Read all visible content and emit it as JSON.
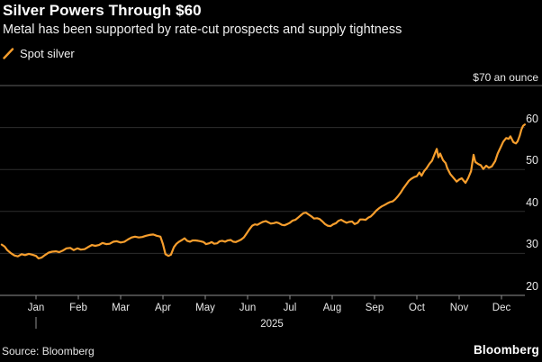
{
  "header": {
    "title": "Silver Powers Through $60",
    "subtitle": "Metal has been supported by rate-cut prospects and supply tightness"
  },
  "legend": {
    "series_label": "Spot silver",
    "swatch_color": "#F79E2D"
  },
  "y_axis": {
    "unit_label": "$70 an ounce",
    "tick_labels": [
      "60",
      "50",
      "40",
      "30",
      "20"
    ],
    "grid_values": [
      60,
      50,
      40,
      30
    ],
    "min": 20,
    "max": 70
  },
  "x_axis": {
    "months": [
      "Jan",
      "Feb",
      "Mar",
      "Apr",
      "May",
      "Jun",
      "Jul",
      "Aug",
      "Sep",
      "Oct",
      "Nov",
      "Dec"
    ],
    "year_label": "2025"
  },
  "footer": {
    "source": "Source: Bloomberg",
    "brand": "Bloomberg"
  },
  "colors": {
    "background": "#000000",
    "line": "#F79E2D",
    "grid": "#2d2d2d",
    "axis": "#8f8f8f",
    "top_rule": "#5f5f5f",
    "text": "#ffffff",
    "muted_text": "#e8e8e8"
  },
  "chart_data": {
    "type": "line",
    "title": "Silver Powers Through $60",
    "subtitle": "Metal has been supported by rate-cut prospects and supply tightness",
    "y_unit": "USD per ounce",
    "x_unit": "month of 2025 (1.0 = Jan 1, 12.0 = Dec 1; values below 1 are Dec 2024)",
    "ylim": [
      20,
      70
    ],
    "xlim": [
      0.19,
      12.55
    ],
    "grid": "horizontal-only",
    "legend_position": "top-left",
    "series": [
      {
        "name": "Spot silver",
        "points": [
          [
            0.19,
            32.1
          ],
          [
            0.26,
            31.6
          ],
          [
            0.32,
            30.8
          ],
          [
            0.4,
            30.1
          ],
          [
            0.49,
            29.5
          ],
          [
            0.57,
            29.3
          ],
          [
            0.66,
            29.8
          ],
          [
            0.74,
            29.6
          ],
          [
            0.83,
            29.9
          ],
          [
            0.91,
            29.7
          ],
          [
            1.0,
            29.4
          ],
          [
            1.06,
            28.8
          ],
          [
            1.13,
            29.0
          ],
          [
            1.21,
            29.6
          ],
          [
            1.3,
            30.2
          ],
          [
            1.38,
            30.4
          ],
          [
            1.47,
            30.5
          ],
          [
            1.55,
            30.3
          ],
          [
            1.64,
            30.7
          ],
          [
            1.72,
            31.2
          ],
          [
            1.81,
            31.3
          ],
          [
            1.89,
            30.8
          ],
          [
            1.98,
            31.2
          ],
          [
            2.06,
            30.9
          ],
          [
            2.15,
            31.0
          ],
          [
            2.23,
            31.5
          ],
          [
            2.32,
            32.0
          ],
          [
            2.4,
            31.8
          ],
          [
            2.49,
            32.0
          ],
          [
            2.57,
            32.5
          ],
          [
            2.66,
            32.2
          ],
          [
            2.74,
            32.3
          ],
          [
            2.83,
            32.8
          ],
          [
            2.91,
            32.9
          ],
          [
            3.0,
            32.6
          ],
          [
            3.09,
            32.8
          ],
          [
            3.17,
            33.3
          ],
          [
            3.26,
            33.8
          ],
          [
            3.34,
            34.0
          ],
          [
            3.43,
            33.8
          ],
          [
            3.51,
            33.9
          ],
          [
            3.6,
            34.2
          ],
          [
            3.68,
            34.4
          ],
          [
            3.77,
            34.5
          ],
          [
            3.85,
            34.2
          ],
          [
            3.94,
            34.0
          ],
          [
            4.0,
            32.2
          ],
          [
            4.06,
            29.8
          ],
          [
            4.13,
            29.4
          ],
          [
            4.19,
            29.7
          ],
          [
            4.26,
            31.5
          ],
          [
            4.32,
            32.3
          ],
          [
            4.38,
            32.8
          ],
          [
            4.45,
            33.2
          ],
          [
            4.51,
            33.6
          ],
          [
            4.57,
            33.0
          ],
          [
            4.64,
            32.8
          ],
          [
            4.7,
            33.1
          ],
          [
            4.77,
            33.1
          ],
          [
            4.83,
            33.0
          ],
          [
            4.89,
            32.9
          ],
          [
            4.96,
            32.7
          ],
          [
            5.02,
            32.2
          ],
          [
            5.09,
            32.4
          ],
          [
            5.15,
            32.7
          ],
          [
            5.21,
            32.3
          ],
          [
            5.28,
            32.4
          ],
          [
            5.34,
            32.9
          ],
          [
            5.4,
            33.0
          ],
          [
            5.47,
            32.8
          ],
          [
            5.53,
            33.1
          ],
          [
            5.6,
            33.2
          ],
          [
            5.66,
            32.8
          ],
          [
            5.72,
            32.7
          ],
          [
            5.79,
            33.0
          ],
          [
            5.85,
            33.3
          ],
          [
            5.91,
            33.8
          ],
          [
            5.98,
            34.8
          ],
          [
            6.04,
            35.7
          ],
          [
            6.11,
            36.6
          ],
          [
            6.17,
            36.9
          ],
          [
            6.23,
            36.8
          ],
          [
            6.3,
            37.2
          ],
          [
            6.36,
            37.5
          ],
          [
            6.43,
            37.7
          ],
          [
            6.49,
            37.4
          ],
          [
            6.55,
            37.1
          ],
          [
            6.62,
            37.2
          ],
          [
            6.68,
            37.4
          ],
          [
            6.74,
            37.2
          ],
          [
            6.81,
            36.8
          ],
          [
            6.87,
            36.7
          ],
          [
            6.94,
            37.0
          ],
          [
            7.0,
            37.3
          ],
          [
            7.06,
            37.8
          ],
          [
            7.13,
            38.0
          ],
          [
            7.19,
            38.5
          ],
          [
            7.26,
            39.1
          ],
          [
            7.32,
            39.6
          ],
          [
            7.38,
            39.7
          ],
          [
            7.45,
            39.2
          ],
          [
            7.51,
            38.8
          ],
          [
            7.57,
            38.3
          ],
          [
            7.64,
            38.4
          ],
          [
            7.7,
            38.2
          ],
          [
            7.77,
            37.6
          ],
          [
            7.83,
            37.0
          ],
          [
            7.89,
            36.6
          ],
          [
            7.96,
            36.5
          ],
          [
            8.02,
            36.9
          ],
          [
            8.09,
            37.2
          ],
          [
            8.15,
            37.8
          ],
          [
            8.21,
            38.0
          ],
          [
            8.28,
            37.6
          ],
          [
            8.34,
            37.3
          ],
          [
            8.4,
            37.5
          ],
          [
            8.47,
            37.6
          ],
          [
            8.53,
            37.0
          ],
          [
            8.6,
            37.3
          ],
          [
            8.66,
            38.1
          ],
          [
            8.72,
            38.1
          ],
          [
            8.79,
            38.0
          ],
          [
            8.85,
            38.5
          ],
          [
            8.91,
            38.8
          ],
          [
            8.98,
            39.5
          ],
          [
            9.04,
            40.2
          ],
          [
            9.11,
            40.8
          ],
          [
            9.17,
            41.2
          ],
          [
            9.23,
            41.5
          ],
          [
            9.3,
            41.9
          ],
          [
            9.36,
            42.2
          ],
          [
            9.43,
            42.4
          ],
          [
            9.49,
            42.9
          ],
          [
            9.55,
            43.6
          ],
          [
            9.62,
            44.5
          ],
          [
            9.68,
            45.5
          ],
          [
            9.74,
            46.3
          ],
          [
            9.81,
            47.3
          ],
          [
            9.87,
            47.8
          ],
          [
            9.94,
            48.2
          ],
          [
            10.0,
            48.4
          ],
          [
            10.06,
            49.3
          ],
          [
            10.11,
            48.5
          ],
          [
            10.17,
            49.6
          ],
          [
            10.23,
            50.3
          ],
          [
            10.3,
            51.4
          ],
          [
            10.36,
            52.1
          ],
          [
            10.43,
            53.9
          ],
          [
            10.47,
            54.9
          ],
          [
            10.51,
            52.9
          ],
          [
            10.55,
            53.8
          ],
          [
            10.62,
            52.2
          ],
          [
            10.68,
            51.5
          ],
          [
            10.72,
            50.3
          ],
          [
            10.79,
            48.9
          ],
          [
            10.85,
            48.2
          ],
          [
            10.94,
            47.1
          ],
          [
            11.0,
            47.6
          ],
          [
            11.06,
            47.9
          ],
          [
            11.15,
            46.8
          ],
          [
            11.21,
            47.9
          ],
          [
            11.28,
            49.6
          ],
          [
            11.34,
            53.5
          ],
          [
            11.38,
            51.8
          ],
          [
            11.45,
            51.3
          ],
          [
            11.51,
            51.0
          ],
          [
            11.57,
            50.1
          ],
          [
            11.64,
            50.9
          ],
          [
            11.7,
            50.4
          ],
          [
            11.77,
            50.7
          ],
          [
            11.85,
            52.0
          ],
          [
            11.91,
            53.8
          ],
          [
            11.98,
            55.3
          ],
          [
            12.04,
            56.6
          ],
          [
            12.11,
            57.5
          ],
          [
            12.17,
            57.3
          ],
          [
            12.21,
            57.9
          ],
          [
            12.28,
            56.5
          ],
          [
            12.34,
            56.2
          ],
          [
            12.38,
            56.7
          ],
          [
            12.43,
            58.0
          ],
          [
            12.47,
            59.5
          ],
          [
            12.51,
            60.4
          ],
          [
            12.55,
            60.7
          ]
        ]
      }
    ]
  }
}
